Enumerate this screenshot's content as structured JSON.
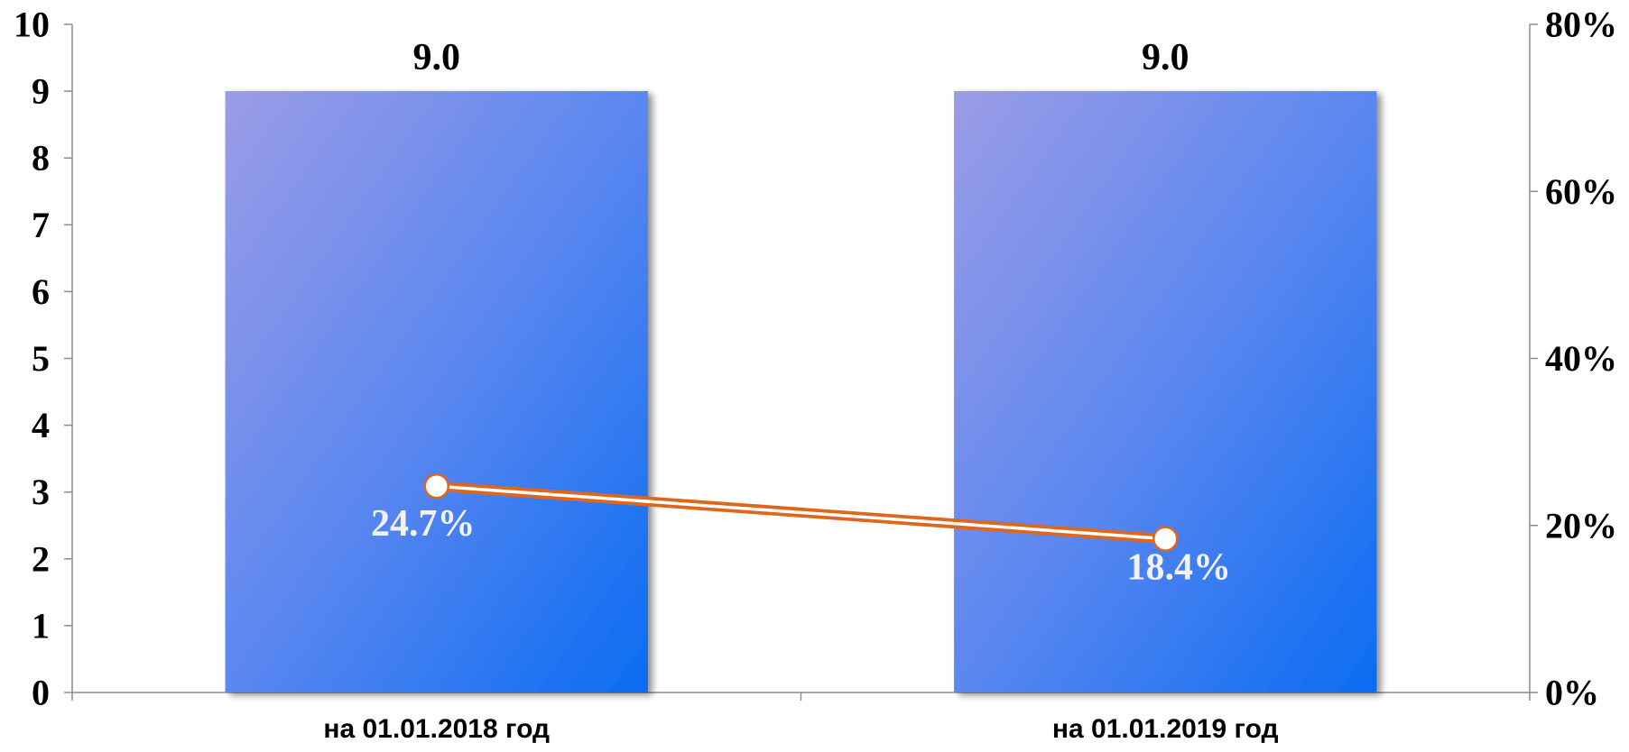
{
  "chart_data": {
    "type": "bar",
    "categories": [
      "на 01.01.2018 год",
      "на 01.01.2019 год"
    ],
    "series": [
      {
        "type": "bar",
        "axis": "left",
        "values": [
          9.0,
          9.0
        ],
        "data_labels": [
          "9.0",
          "9.0"
        ],
        "color": "#3f7ff0"
      },
      {
        "type": "line",
        "axis": "right",
        "values": [
          24.7,
          18.4
        ],
        "data_labels": [
          "24.7%",
          "18.4%"
        ],
        "color": "#e0661b"
      }
    ],
    "y_left": {
      "lim": [
        0,
        10
      ],
      "ticks": [
        "0",
        "1",
        "2",
        "3",
        "4",
        "5",
        "6",
        "7",
        "8",
        "9",
        "10"
      ]
    },
    "y_right": {
      "lim": [
        0,
        80
      ],
      "ticks": [
        "0%",
        "20%",
        "40%",
        "60%",
        "80%"
      ]
    },
    "grid": false,
    "legend": "none",
    "title": "",
    "xlabel": "",
    "ylabel": ""
  }
}
